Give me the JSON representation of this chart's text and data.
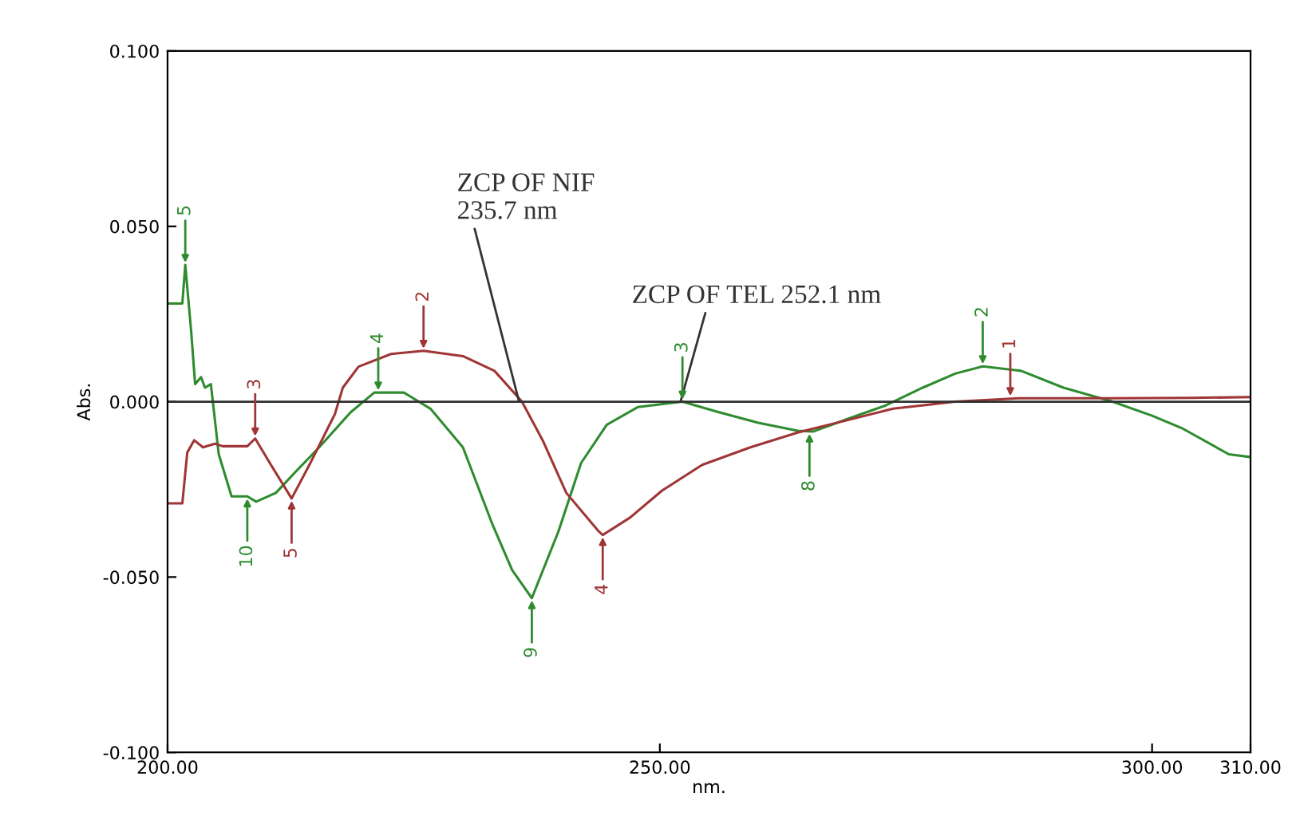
{
  "chart_data": {
    "type": "line",
    "xlabel": "nm.",
    "ylabel": "Abs.",
    "xlim": [
      200,
      310
    ],
    "xticks": [
      {
        "value": 200,
        "label": "200.00"
      },
      {
        "value": 250,
        "label": "250.00"
      },
      {
        "value": 300,
        "label": "300.00"
      },
      {
        "value": 310,
        "label": "310.00"
      }
    ],
    "ylim": [
      -0.1,
      0.1
    ],
    "yticks": [
      {
        "value": -0.1,
        "label": "-0.100"
      },
      {
        "value": -0.05,
        "label": "-0.050"
      },
      {
        "value": 0,
        "label": "0.000"
      },
      {
        "value": 0.05,
        "label": "0.050"
      },
      {
        "value": 0.1,
        "label": "0.100"
      }
    ],
    "grid": false,
    "legend": false,
    "marker": "none",
    "line_style": "solid",
    "ref_lines": [
      {
        "axis": "y",
        "value": 0,
        "color": "#303030"
      }
    ],
    "series": [
      {
        "color": "#2e8b2e",
        "x": [
          200.2,
          201.5,
          201.8,
          202.4,
          202.8,
          203.4,
          203.8,
          204.4,
          205.2,
          206.5,
          208.1,
          209.0,
          211.0,
          213.0,
          215.4,
          218.6,
          221.0,
          224.0,
          226.7,
          230.0,
          233.0,
          235.0,
          237.0,
          239.7,
          242.0,
          244.6,
          247.8,
          252.3,
          256.0,
          260.0,
          264.0,
          265.6,
          269.0,
          273.0,
          276.7,
          280.0,
          282.8,
          286.7,
          291.0,
          296.0,
          300.0,
          303.0,
          307.8,
          310.0
        ],
        "values": [
          0.028,
          0.028,
          0.039,
          0.02,
          0.005,
          0.007,
          0.004,
          0.005,
          -0.015,
          -0.027,
          -0.027,
          -0.0285,
          -0.026,
          -0.02,
          -0.013,
          -0.003,
          0.0026,
          0.0026,
          -0.002,
          -0.013,
          -0.035,
          -0.048,
          -0.056,
          -0.037,
          -0.0175,
          -0.0066,
          -0.0015,
          0.0,
          -0.003,
          -0.006,
          -0.0083,
          -0.0085,
          -0.005,
          -0.001,
          0.004,
          0.008,
          0.0101,
          0.0088,
          0.004,
          0.0,
          -0.004,
          -0.0075,
          -0.015,
          -0.0158
        ]
      },
      {
        "color": "#a03535",
        "x": [
          200.2,
          201.5,
          202.0,
          202.7,
          203.6,
          204.8,
          205.6,
          208.1,
          208.9,
          210.5,
          212.6,
          214.5,
          217.0,
          217.8,
          219.4,
          222.7,
          226.0,
          230.0,
          233.2,
          236.0,
          238.1,
          240.5,
          243.8,
          244.2,
          247.0,
          250.2,
          254.3,
          259.2,
          264.0,
          269.0,
          273.7,
          280.0,
          286.5,
          296.0,
          304.0,
          310.0
        ],
        "values": [
          -0.029,
          -0.029,
          -0.0145,
          -0.011,
          -0.013,
          -0.012,
          -0.0127,
          -0.0127,
          -0.0105,
          -0.018,
          -0.0276,
          -0.0175,
          -0.0035,
          0.004,
          0.01,
          0.0136,
          0.0145,
          0.013,
          0.0088,
          0.0,
          -0.011,
          -0.026,
          -0.037,
          -0.038,
          -0.033,
          -0.0254,
          -0.018,
          -0.013,
          -0.0088,
          -0.0053,
          -0.002,
          0.0,
          0.001,
          0.001,
          0.0011,
          0.0013
        ]
      }
    ],
    "annotations": [
      {
        "text": "ZCP OF NIF\n235.7 nm",
        "x": 235.7,
        "y": 0
      },
      {
        "text": "ZCP OF TEL 252.1 nm",
        "x": 252.1,
        "y": 0
      },
      {
        "text": "5",
        "x": 201.8,
        "y": 0.039
      },
      {
        "text": "10",
        "x": 208.1,
        "y": -0.027
      },
      {
        "text": "3",
        "x": 208.9,
        "y": -0.0105
      },
      {
        "text": "5",
        "x": 212.6,
        "y": -0.0276
      },
      {
        "text": "4",
        "x": 221.4,
        "y": 0.0026
      },
      {
        "text": "2",
        "x": 226.0,
        "y": 0.0145
      },
      {
        "text": "9",
        "x": 237.0,
        "y": -0.056
      },
      {
        "text": "4",
        "x": 244.2,
        "y": -0.038
      },
      {
        "text": "3",
        "x": 252.3,
        "y": 0.0
      },
      {
        "text": "8",
        "x": 265.2,
        "y": -0.0085
      },
      {
        "text": "2",
        "x": 282.8,
        "y": 0.0101
      },
      {
        "text": "1",
        "x": 285.6,
        "y": 0.001
      }
    ]
  }
}
